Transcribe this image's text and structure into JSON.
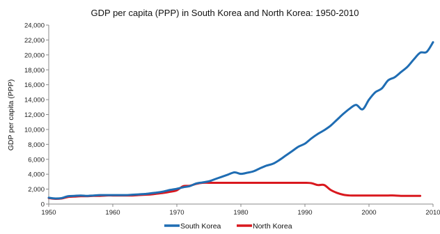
{
  "chart_data": {
    "type": "line",
    "title": "GDP per capita (PPP) in South Korea and North Korea: 1950-2010",
    "ylabel": "GDP per capita (PPP)",
    "xlabel": "",
    "xlim": [
      1950,
      2010
    ],
    "ylim": [
      0,
      24000
    ],
    "x_ticks": [
      "1950",
      "1960",
      "1970",
      "1980",
      "1990",
      "2000",
      "2010"
    ],
    "y_ticks": [
      "0",
      "2,000",
      "4,000",
      "6,000",
      "8,000",
      "10,000",
      "12,000",
      "14,000",
      "16,000",
      "18,000",
      "20,000",
      "22,000",
      "24,000"
    ],
    "grid": false,
    "legend_position": "bottom",
    "series": [
      {
        "name": "South Korea",
        "color": "#1f6db3",
        "x": [
          1950,
          1951,
          1952,
          1953,
          1954,
          1955,
          1956,
          1957,
          1958,
          1959,
          1960,
          1961,
          1962,
          1963,
          1964,
          1965,
          1966,
          1967,
          1968,
          1969,
          1970,
          1971,
          1972,
          1973,
          1974,
          1975,
          1976,
          1977,
          1978,
          1979,
          1980,
          1981,
          1982,
          1983,
          1984,
          1985,
          1986,
          1987,
          1988,
          1989,
          1990,
          1991,
          1992,
          1993,
          1994,
          1995,
          1996,
          1997,
          1998,
          1999,
          2000,
          2001,
          2002,
          2003,
          2004,
          2005,
          2006,
          2007,
          2008,
          2009,
          2010
        ],
        "y": [
          850,
          750,
          800,
          1050,
          1100,
          1150,
          1100,
          1150,
          1200,
          1200,
          1200,
          1200,
          1200,
          1250,
          1300,
          1350,
          1450,
          1550,
          1700,
          1900,
          2050,
          2250,
          2400,
          2750,
          2900,
          3050,
          3350,
          3650,
          3950,
          4250,
          4050,
          4200,
          4400,
          4800,
          5150,
          5400,
          5900,
          6500,
          7100,
          7700,
          8100,
          8800,
          9400,
          9900,
          10500,
          11300,
          12100,
          12800,
          13300,
          12700,
          14000,
          15000,
          15500,
          16600,
          17000,
          17700,
          18400,
          19400,
          20300,
          20400,
          21700
        ]
      },
      {
        "name": "North Korea",
        "color": "#d9181e",
        "x": [
          1950,
          1951,
          1952,
          1953,
          1954,
          1955,
          1956,
          1957,
          1958,
          1959,
          1960,
          1961,
          1962,
          1963,
          1964,
          1965,
          1966,
          1967,
          1968,
          1969,
          1970,
          1971,
          1972,
          1973,
          1974,
          1975,
          1976,
          1977,
          1978,
          1979,
          1980,
          1981,
          1982,
          1983,
          1984,
          1985,
          1986,
          1987,
          1988,
          1989,
          1990,
          1991,
          1992,
          1993,
          1994,
          1995,
          1996,
          1997,
          1998,
          1999,
          2000,
          2001,
          2002,
          2003,
          2004,
          2005,
          2006,
          2007,
          2008
        ],
        "y": [
          800,
          700,
          750,
          950,
          1000,
          1050,
          1050,
          1100,
          1100,
          1150,
          1150,
          1150,
          1150,
          1150,
          1200,
          1250,
          1300,
          1400,
          1500,
          1650,
          1850,
          2400,
          2450,
          2700,
          2850,
          2850,
          2850,
          2850,
          2850,
          2850,
          2850,
          2850,
          2850,
          2850,
          2850,
          2850,
          2850,
          2850,
          2850,
          2850,
          2850,
          2800,
          2550,
          2550,
          1900,
          1500,
          1250,
          1150,
          1150,
          1150,
          1150,
          1150,
          1150,
          1150,
          1150,
          1100,
          1100,
          1100,
          1100
        ]
      }
    ]
  }
}
